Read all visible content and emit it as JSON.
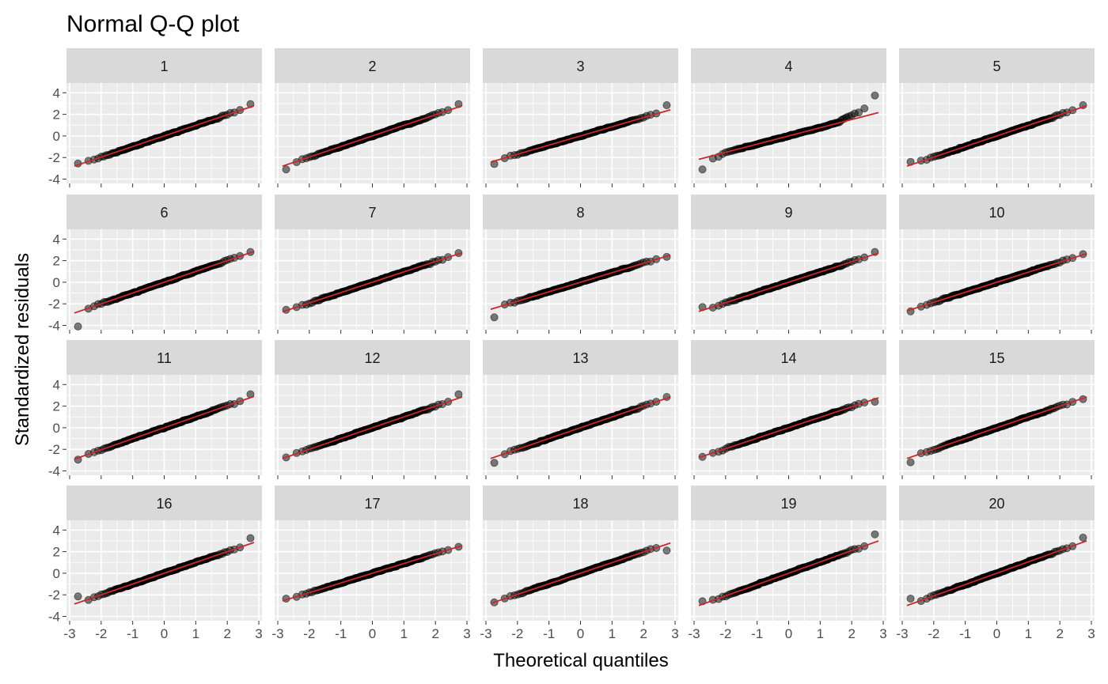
{
  "chart_data": {
    "type": "scatter",
    "title": "Normal Q-Q plot",
    "xlabel": "Theoretical quantiles",
    "ylabel": "Standardized residuals",
    "xlim": [
      -3.1,
      3.1
    ],
    "ylim": [
      -4.4,
      4.9
    ],
    "x_ticks": [
      -3,
      -2,
      -1,
      0,
      1,
      2,
      3
    ],
    "x_tick_labels": [
      "-3",
      "-2",
      "-1",
      "0",
      "1",
      "2",
      "3"
    ],
    "y_ticks": [
      -4,
      -2,
      0,
      2,
      4
    ],
    "y_tick_labels": [
      "-4",
      "-2",
      "0",
      "2",
      "4"
    ],
    "n_points_per_panel": 200,
    "grid": true,
    "layout": "facet_wrap 4 rows x 5 columns",
    "colors": {
      "panel_bg": "#ebebeb",
      "grid": "#ffffff",
      "strip_bg": "#d9d9d9",
      "point": "#000000",
      "reference_line": "#c8282a"
    },
    "panels": [
      {
        "label": "1",
        "line": {
          "intercept": 0.0,
          "slope": 0.98
        },
        "extremes": {
          "x_min": -2.85,
          "y_min": -2.55,
          "x_max": 2.85,
          "y_max": 2.95
        }
      },
      {
        "label": "2",
        "line": {
          "intercept": 0.0,
          "slope": 0.98
        },
        "extremes": {
          "x_min": -2.85,
          "y_min": -3.1,
          "x_max": 2.85,
          "y_max": 2.95
        }
      },
      {
        "label": "3",
        "line": {
          "intercept": 0.0,
          "slope": 0.85
        },
        "extremes": {
          "x_min": -2.85,
          "y_min": -2.6,
          "x_max": 2.85,
          "y_max": 2.85
        }
      },
      {
        "label": "4",
        "line": {
          "intercept": 0.0,
          "slope": 0.76
        },
        "extremes": {
          "x_min": -2.85,
          "y_min": -3.1,
          "x_max": 2.85,
          "y_max": 3.75
        }
      },
      {
        "label": "5",
        "line": {
          "intercept": 0.0,
          "slope": 0.98
        },
        "extremes": {
          "x_min": -2.85,
          "y_min": -2.4,
          "x_max": 2.85,
          "y_max": 2.85
        }
      },
      {
        "label": "6",
        "line": {
          "intercept": 0.0,
          "slope": 1.0
        },
        "extremes": {
          "x_min": -2.85,
          "y_min": -4.1,
          "x_max": 2.85,
          "y_max": 2.8
        }
      },
      {
        "label": "7",
        "line": {
          "intercept": 0.0,
          "slope": 0.96
        },
        "extremes": {
          "x_min": -2.85,
          "y_min": -2.55,
          "x_max": 2.85,
          "y_max": 2.7
        }
      },
      {
        "label": "8",
        "line": {
          "intercept": 0.0,
          "slope": 0.88
        },
        "extremes": {
          "x_min": -2.85,
          "y_min": -3.25,
          "x_max": 2.85,
          "y_max": 2.35
        }
      },
      {
        "label": "9",
        "line": {
          "intercept": 0.0,
          "slope": 0.95
        },
        "extremes": {
          "x_min": -2.85,
          "y_min": -2.3,
          "x_max": 2.85,
          "y_max": 2.8
        }
      },
      {
        "label": "10",
        "line": {
          "intercept": 0.0,
          "slope": 0.93
        },
        "extremes": {
          "x_min": -2.85,
          "y_min": -2.7,
          "x_max": 2.85,
          "y_max": 2.6
        }
      },
      {
        "label": "11",
        "line": {
          "intercept": 0.0,
          "slope": 1.02
        },
        "extremes": {
          "x_min": -2.85,
          "y_min": -2.95,
          "x_max": 2.85,
          "y_max": 3.1
        }
      },
      {
        "label": "12",
        "line": {
          "intercept": 0.0,
          "slope": 1.0
        },
        "extremes": {
          "x_min": -2.85,
          "y_min": -2.75,
          "x_max": 2.85,
          "y_max": 3.1
        }
      },
      {
        "label": "13",
        "line": {
          "intercept": 0.0,
          "slope": 1.0
        },
        "extremes": {
          "x_min": -2.85,
          "y_min": -3.25,
          "x_max": 2.85,
          "y_max": 2.85
        }
      },
      {
        "label": "14",
        "line": {
          "intercept": 0.0,
          "slope": 0.97
        },
        "extremes": {
          "x_min": -2.85,
          "y_min": -2.7,
          "x_max": 2.85,
          "y_max": 2.4
        }
      },
      {
        "label": "15",
        "line": {
          "intercept": 0.0,
          "slope": 1.0
        },
        "extremes": {
          "x_min": -2.85,
          "y_min": -3.2,
          "x_max": 2.85,
          "y_max": 2.65
        }
      },
      {
        "label": "16",
        "line": {
          "intercept": 0.0,
          "slope": 1.0
        },
        "extremes": {
          "x_min": -2.85,
          "y_min": -2.15,
          "x_max": 2.85,
          "y_max": 3.25
        }
      },
      {
        "label": "17",
        "line": {
          "intercept": 0.0,
          "slope": 0.9
        },
        "extremes": {
          "x_min": -2.85,
          "y_min": -2.35,
          "x_max": 2.85,
          "y_max": 2.45
        }
      },
      {
        "label": "18",
        "line": {
          "intercept": 0.0,
          "slope": 0.98
        },
        "extremes": {
          "x_min": -2.85,
          "y_min": -2.7,
          "x_max": 2.85,
          "y_max": 2.1
        }
      },
      {
        "label": "19",
        "line": {
          "intercept": 0.0,
          "slope": 1.05
        },
        "extremes": {
          "x_min": -2.85,
          "y_min": -2.6,
          "x_max": 2.85,
          "y_max": 3.6
        }
      },
      {
        "label": "20",
        "line": {
          "intercept": 0.0,
          "slope": 1.05
        },
        "extremes": {
          "x_min": -2.85,
          "y_min": -2.35,
          "x_max": 2.85,
          "y_max": 3.3
        }
      }
    ]
  }
}
